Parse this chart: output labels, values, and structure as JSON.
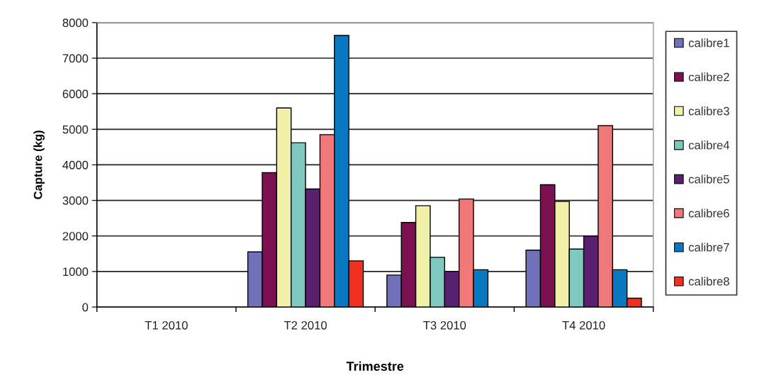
{
  "chart_data": {
    "type": "bar",
    "xlabel": "Trimestre",
    "ylabel": "Capture (kg)",
    "categories": [
      "T1 2010",
      "T2 2010",
      "T3 2010",
      "T4 2010"
    ],
    "series": [
      {
        "name": "calibre1",
        "color": "#6f72b8",
        "values": [
          null,
          1550,
          900,
          1600
        ]
      },
      {
        "name": "calibre2",
        "color": "#7d1050",
        "values": [
          null,
          3780,
          2380,
          3440
        ]
      },
      {
        "name": "calibre3",
        "color": "#f0f0a8",
        "values": [
          null,
          5600,
          2850,
          2970
        ]
      },
      {
        "name": "calibre4",
        "color": "#7ec8c0",
        "values": [
          null,
          4620,
          1400,
          1630
        ]
      },
      {
        "name": "calibre5",
        "color": "#5a2070",
        "values": [
          null,
          3320,
          1000,
          2000
        ]
      },
      {
        "name": "calibre6",
        "color": "#f07878",
        "values": [
          null,
          4850,
          3040,
          5100
        ]
      },
      {
        "name": "calibre7",
        "color": "#0878c0",
        "values": [
          null,
          7640,
          1050,
          1050
        ]
      },
      {
        "name": "calibre8",
        "color": "#f03020",
        "values": [
          null,
          1300,
          null,
          250
        ]
      }
    ],
    "ylim": [
      0,
      8000
    ],
    "yticks": [
      0,
      1000,
      2000,
      3000,
      4000,
      5000,
      6000,
      7000,
      8000
    ],
    "grid": "y",
    "legend": "right"
  }
}
